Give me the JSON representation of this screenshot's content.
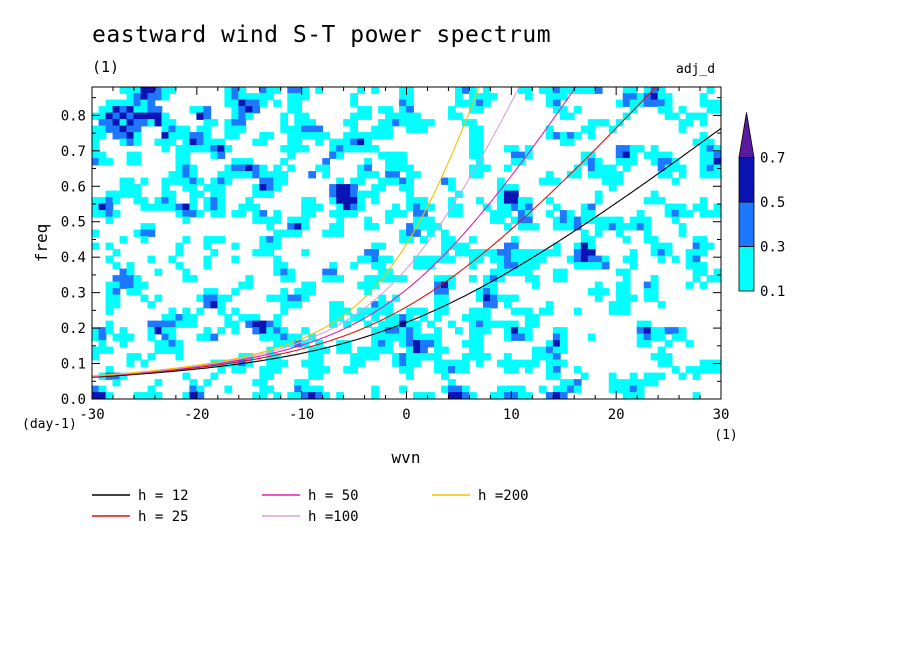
{
  "chart_data": {
    "type": "heatmap",
    "title": "eastward wind S-T power spectrum",
    "subtitle": "(1)",
    "tag": "adj_d",
    "xlabel": "wvn",
    "ylabel": "freq",
    "x_unit": "(1)",
    "y_unit": "(day-1)",
    "xlim": [
      -30,
      30
    ],
    "ylim": [
      0,
      0.88
    ],
    "xticks": [
      "-30",
      "-20",
      "-10",
      "0",
      "10",
      "20",
      "30"
    ],
    "yticks": [
      "0.0",
      "0.1",
      "0.2",
      "0.3",
      "0.4",
      "0.5",
      "0.6",
      "0.7",
      "0.8"
    ],
    "colorbar": {
      "levels": [
        "0.1",
        "0.3",
        "0.5",
        "0.7"
      ],
      "colors": [
        "#00ffff",
        "#1e78ff",
        "#0a14b4",
        "#5a1aa0"
      ]
    },
    "dispersion_curves": [
      {
        "name": "h = 12",
        "h": 12,
        "color": "#000000"
      },
      {
        "name": "h = 25",
        "h": 25,
        "color": "#e01010"
      },
      {
        "name": "h = 50",
        "h": 50,
        "color": "#e020b0"
      },
      {
        "name": "h =100",
        "h": 100,
        "color": "#d8a0e0"
      },
      {
        "name": "h =200",
        "h": 200,
        "color": "#f0c000"
      }
    ]
  }
}
